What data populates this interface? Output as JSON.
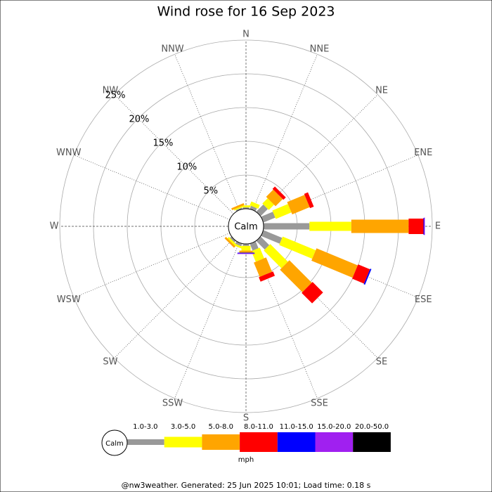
{
  "chart_data": {
    "type": "windrose",
    "title": "Wind rose for 16 Sep 2023",
    "calm_label": "Calm",
    "directions": [
      "N",
      "NNE",
      "NE",
      "ENE",
      "E",
      "ESE",
      "SE",
      "SSE",
      "S",
      "SSW",
      "SW",
      "WSW",
      "W",
      "WNW",
      "NW",
      "NNW"
    ],
    "rlim": [
      0,
      25
    ],
    "rticks": [
      {
        "value": 5,
        "label": "5%"
      },
      {
        "value": 10,
        "label": "10%"
      },
      {
        "value": 15,
        "label": "15%"
      },
      {
        "value": 20,
        "label": "20%"
      },
      {
        "value": 25,
        "label": "25%"
      }
    ],
    "series": [
      {
        "name": "1.0-3.0",
        "color": "#999999",
        "values": [
          0.2,
          0.5,
          1.5,
          1.9,
          6.8,
          3.0,
          1.8,
          1.1,
          0.3,
          0.4,
          0.3,
          0,
          0,
          0,
          0,
          0.2
        ]
      },
      {
        "name": "3.0-5.0",
        "color": "#ffff00",
        "values": [
          0.3,
          0.6,
          1.1,
          2.5,
          6.2,
          5.3,
          3.7,
          1.7,
          0.7,
          0.3,
          0.3,
          0,
          0,
          0,
          0,
          0.2
        ]
      },
      {
        "name": "5.0-8.0",
        "color": "#ffa500",
        "values": [
          0,
          0,
          1.5,
          2.8,
          8.5,
          6.6,
          4.7,
          2.3,
          0.3,
          0,
          0.3,
          0,
          0,
          0,
          0,
          0.3
        ]
      },
      {
        "name": "8.0-11.0",
        "color": "#ff0000",
        "values": [
          0,
          0,
          0.5,
          0.6,
          2.2,
          1.9,
          2.2,
          0.7,
          0,
          0,
          0,
          0,
          0,
          0,
          0,
          0
        ]
      },
      {
        "name": "11.0-15.0",
        "color": "#0000ff",
        "values": [
          0,
          0,
          0,
          0,
          0.1,
          0.2,
          0,
          0,
          0.1,
          0,
          0,
          0,
          0,
          0,
          0,
          0
        ]
      },
      {
        "name": "15.0-20.0",
        "color": "#a020f0",
        "values": [
          0,
          0,
          0,
          0,
          0.1,
          0,
          0,
          0,
          0.1,
          0,
          0,
          0,
          0,
          0,
          0,
          0
        ]
      },
      {
        "name": "20.0-50.0",
        "color": "#000000",
        "values": [
          0,
          0,
          0,
          0,
          0,
          0,
          0,
          0,
          0,
          0,
          0,
          0,
          0,
          0,
          0,
          0
        ]
      }
    ],
    "legend_unit": "mph",
    "footer": "@nw3weather. Generated: 25 Jun 2025 10:01; Load time: 0.18 s"
  }
}
